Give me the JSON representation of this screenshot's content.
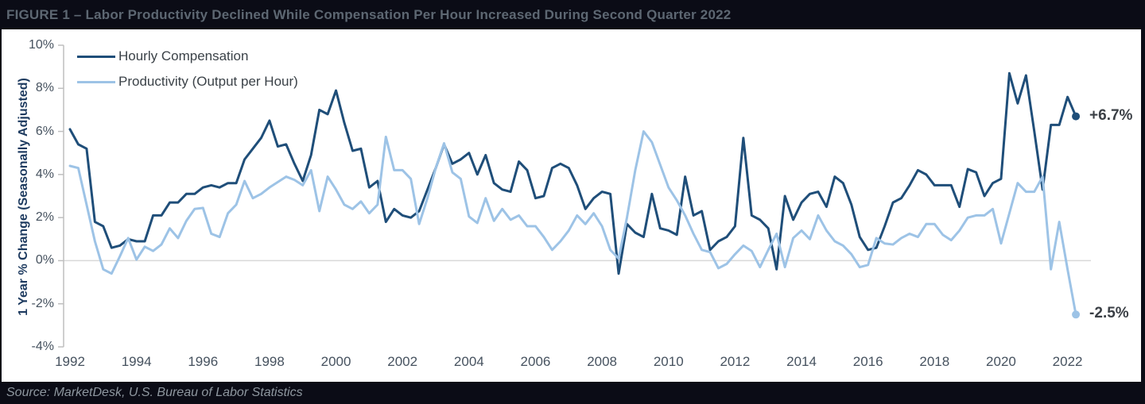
{
  "header": {
    "title": "FIGURE 1 – Labor Productivity Declined While Compensation Per Hour Increased During Second Quarter 2022"
  },
  "footer": {
    "source": "Source: MarketDesk, U.S. Bureau of Labor Statistics"
  },
  "colors": {
    "bar_background": "#0b0c16",
    "hourly_compensation_line": "#1F4E79",
    "productivity_line": "#9DC3E6",
    "zero_gridline": "#d9d9d9",
    "axis_line": "#bfbfbf"
  },
  "chart_data": {
    "type": "line",
    "title": "FIGURE 1 – Labor Productivity Declined While Compensation Per Hour Increased During Second Quarter 2022",
    "ylabel": "1 Year % Change (Seasonally Adjusted)",
    "ylim": [
      -4,
      10
    ],
    "y_ticks": [
      "10%",
      "8%",
      "6%",
      "4%",
      "2%",
      "0%",
      "-2%",
      "-4%"
    ],
    "y_tick_values": [
      10,
      8,
      6,
      4,
      2,
      0,
      -2,
      -4
    ],
    "x_ticks": [
      "1992",
      "1994",
      "1996",
      "1998",
      "2000",
      "2002",
      "2004",
      "2006",
      "2008",
      "2010",
      "2012",
      "2014",
      "2016",
      "2018",
      "2020",
      "2022"
    ],
    "x_start": "1992 Q1",
    "x_end": "2022 Q2",
    "frequency": "quarterly",
    "gridline_at": 0,
    "legend_position": "top-left",
    "series": [
      {
        "name": "Hourly Compensation",
        "color": "#1F4E79",
        "end_label": "+6.7%",
        "end_value": 6.7,
        "values": [
          6.1,
          5.4,
          5.2,
          1.8,
          1.6,
          0.6,
          0.7,
          1.0,
          0.9,
          0.9,
          2.1,
          2.1,
          2.7,
          2.7,
          3.1,
          3.1,
          3.4,
          3.5,
          3.4,
          3.6,
          3.6,
          4.7,
          5.2,
          5.7,
          6.5,
          5.3,
          5.4,
          4.5,
          3.7,
          4.9,
          7.0,
          6.8,
          7.9,
          6.4,
          5.1,
          5.2,
          3.4,
          3.7,
          1.8,
          2.4,
          2.1,
          2.0,
          2.3,
          3.3,
          4.3,
          5.4,
          4.5,
          4.7,
          5.0,
          4.0,
          4.9,
          3.6,
          3.3,
          3.2,
          4.6,
          4.2,
          2.9,
          3.0,
          4.3,
          4.5,
          4.3,
          3.5,
          2.4,
          2.9,
          3.2,
          3.1,
          -0.6,
          1.7,
          1.3,
          1.1,
          3.1,
          1.5,
          1.4,
          1.2,
          3.9,
          2.1,
          2.3,
          0.5,
          0.9,
          1.1,
          1.6,
          5.7,
          2.1,
          1.9,
          1.5,
          -0.4,
          3.0,
          1.9,
          2.7,
          3.1,
          3.2,
          2.5,
          3.9,
          3.6,
          2.6,
          1.1,
          0.5,
          0.6,
          1.6,
          2.7,
          2.9,
          3.5,
          4.2,
          4.0,
          3.5,
          3.5,
          3.5,
          2.5,
          4.25,
          4.1,
          3.0,
          3.6,
          3.8,
          8.7,
          7.3,
          8.6,
          6.0,
          3.3,
          6.3,
          6.3,
          7.6,
          6.7
        ]
      },
      {
        "name": "Productivity (Output per Hour)",
        "color": "#9DC3E6",
        "end_label": "-2.5%",
        "end_value": -2.5,
        "values": [
          4.4,
          4.3,
          2.6,
          0.9,
          -0.4,
          -0.6,
          0.2,
          1.05,
          0.05,
          0.65,
          0.45,
          0.75,
          1.5,
          1.05,
          1.85,
          2.4,
          2.45,
          1.25,
          1.1,
          2.2,
          2.6,
          3.7,
          2.9,
          3.1,
          3.4,
          3.65,
          3.9,
          3.75,
          3.5,
          4.2,
          2.3,
          3.9,
          3.3,
          2.6,
          2.4,
          2.75,
          2.2,
          2.6,
          5.75,
          4.2,
          4.2,
          3.8,
          1.7,
          2.9,
          4.3,
          5.45,
          4.1,
          3.8,
          2.05,
          1.75,
          2.9,
          1.85,
          2.4,
          1.9,
          2.1,
          1.6,
          1.6,
          1.1,
          0.5,
          0.9,
          1.4,
          2.1,
          1.7,
          2.2,
          1.6,
          0.5,
          0.1,
          2.0,
          4.2,
          6.0,
          5.5,
          4.45,
          3.4,
          2.8,
          2.1,
          1.25,
          0.5,
          0.4,
          -0.35,
          -0.15,
          0.3,
          0.7,
          0.45,
          -0.3,
          0.5,
          1.25,
          -0.3,
          1.05,
          1.4,
          1.0,
          2.1,
          1.4,
          0.9,
          0.7,
          0.3,
          -0.3,
          -0.2,
          1.05,
          0.8,
          0.75,
          1.05,
          1.25,
          1.1,
          1.7,
          1.7,
          1.2,
          0.95,
          1.4,
          2.0,
          2.1,
          2.1,
          2.4,
          0.8,
          2.2,
          3.6,
          3.2,
          3.2,
          3.9,
          -0.4,
          1.8,
          -0.4,
          -2.5
        ]
      }
    ]
  }
}
